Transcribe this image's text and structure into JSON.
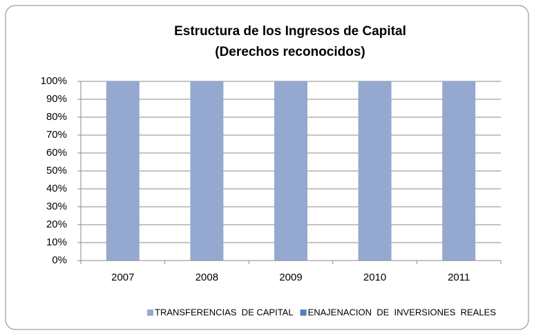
{
  "chart_data": {
    "type": "bar",
    "stacked": true,
    "title": "Estructura de los Ingresos de Capital",
    "subtitle": "(Derechos reconocidos)",
    "categories": [
      "2007",
      "2008",
      "2009",
      "2010",
      "2011"
    ],
    "series": [
      {
        "name": "TRANSFERENCIAS  DE CAPITAL",
        "color": "#95a9d0",
        "values": [
          100,
          100,
          100,
          100,
          100
        ]
      },
      {
        "name": "ENAJENACION  DE  INVERSIONES  REALES",
        "color": "#4f81bd",
        "values": [
          0,
          0,
          0,
          0,
          0
        ]
      }
    ],
    "ylim": [
      0,
      100
    ],
    "yticks": [
      {
        "value": 0,
        "label": "0%"
      },
      {
        "value": 10,
        "label": "10%"
      },
      {
        "value": 20,
        "label": "20%"
      },
      {
        "value": 30,
        "label": "30%"
      },
      {
        "value": 40,
        "label": "40%"
      },
      {
        "value": 50,
        "label": "50%"
      },
      {
        "value": 60,
        "label": "60%"
      },
      {
        "value": 70,
        "label": "70%"
      },
      {
        "value": 80,
        "label": "80%"
      },
      {
        "value": 90,
        "label": "90%"
      },
      {
        "value": 100,
        "label": "100%"
      }
    ],
    "grid": true,
    "legend": "bottom"
  }
}
